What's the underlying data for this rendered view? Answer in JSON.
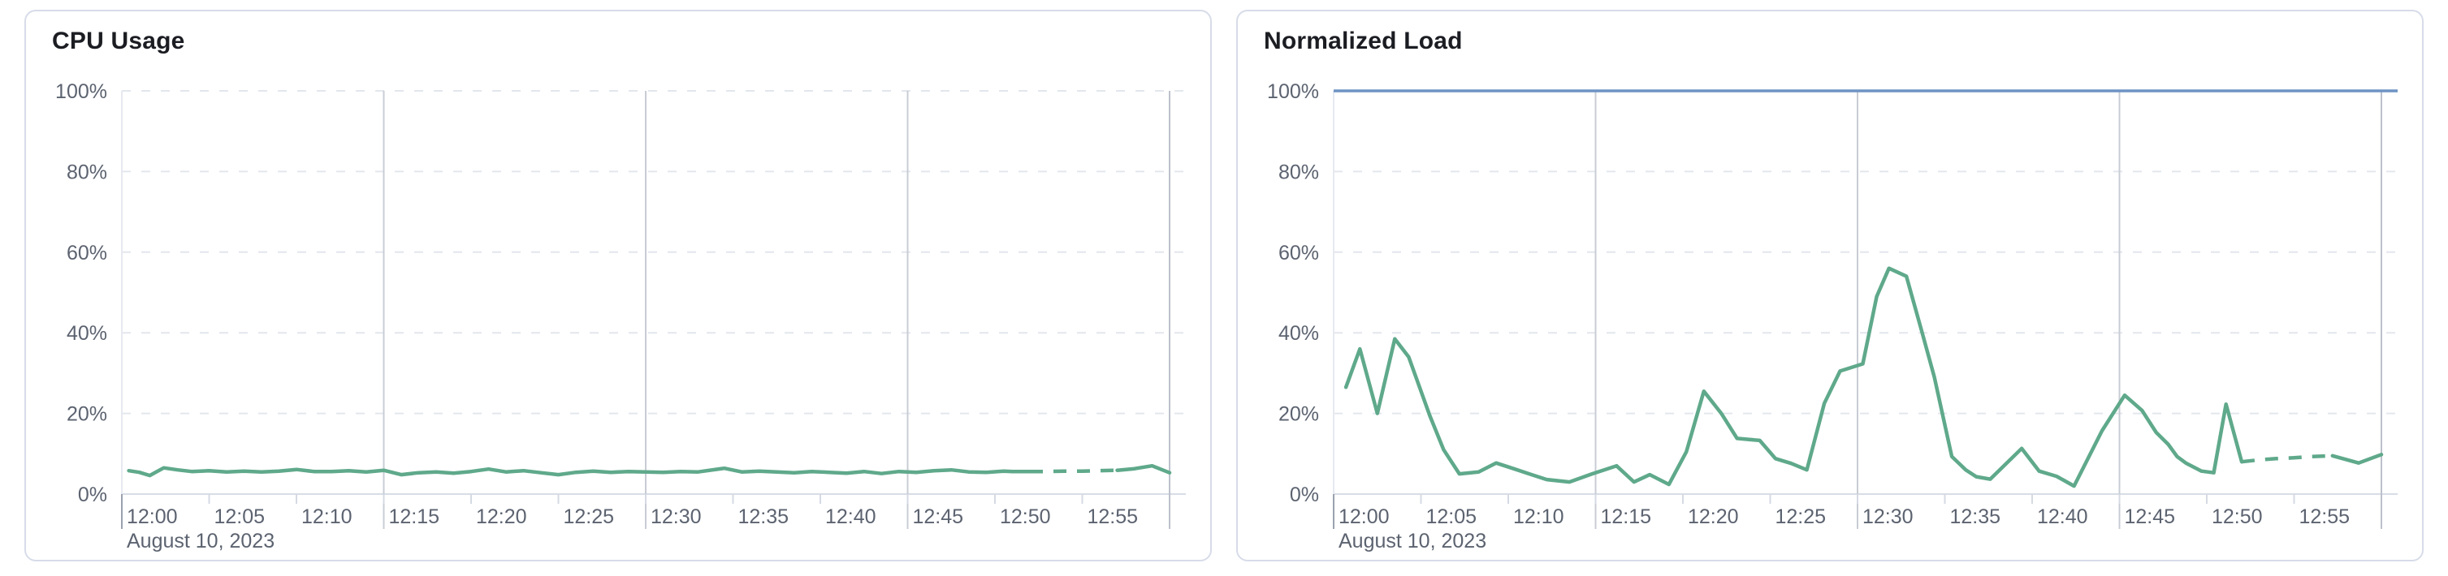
{
  "chart_data": [
    {
      "type": "line",
      "title": "CPU Usage",
      "date_label": "August 10, 2023",
      "x_tick_labels": [
        "12:00",
        "12:05",
        "12:10",
        "12:15",
        "12:20",
        "12:25",
        "12:30",
        "12:35",
        "12:40",
        "12:45",
        "12:50",
        "12:55"
      ],
      "x_tick_minutes": [
        0,
        5,
        10,
        15,
        20,
        25,
        30,
        35,
        40,
        45,
        50,
        55
      ],
      "x_major_gridline_minutes": [
        15,
        30,
        45
      ],
      "x_range_minutes": [
        0,
        60
      ],
      "ylim": [
        0,
        100
      ],
      "y_tick_values": [
        100,
        80,
        60,
        40,
        20,
        0
      ],
      "y_tick_labels": [
        "100%",
        "80%",
        "60%",
        "40%",
        "20%",
        "0%"
      ],
      "grid": {
        "horizontal": "dashed",
        "vertical": "solid-every-15min",
        "legend": "none"
      },
      "threshold": null,
      "series": [
        {
          "name": "cpu_usage",
          "color": "#5fa98b",
          "unit": "%",
          "dash_between_minutes": [
            52,
            57
          ],
          "dash_note": "segment rendered dashed (sparse/estimated data)",
          "points": [
            [
              0.4,
              5.8
            ],
            [
              1,
              5.4
            ],
            [
              1.6,
              4.6
            ],
            [
              2.4,
              6.5
            ],
            [
              3.2,
              6.0
            ],
            [
              4,
              5.6
            ],
            [
              5,
              5.8
            ],
            [
              6,
              5.5
            ],
            [
              7,
              5.7
            ],
            [
              8,
              5.5
            ],
            [
              9,
              5.7
            ],
            [
              10,
              6.1
            ],
            [
              11,
              5.6
            ],
            [
              12,
              5.6
            ],
            [
              13,
              5.8
            ],
            [
              14,
              5.5
            ],
            [
              15,
              5.9
            ],
            [
              16,
              4.8
            ],
            [
              17,
              5.3
            ],
            [
              18,
              5.5
            ],
            [
              19,
              5.2
            ],
            [
              20,
              5.6
            ],
            [
              21,
              6.2
            ],
            [
              22,
              5.5
            ],
            [
              23,
              5.8
            ],
            [
              24,
              5.3
            ],
            [
              25,
              4.8
            ],
            [
              26,
              5.4
            ],
            [
              27,
              5.7
            ],
            [
              28,
              5.4
            ],
            [
              29,
              5.6
            ],
            [
              30,
              5.5
            ],
            [
              31,
              5.4
            ],
            [
              32,
              5.6
            ],
            [
              33,
              5.5
            ],
            [
              34.5,
              6.4
            ],
            [
              35.5,
              5.5
            ],
            [
              36.5,
              5.7
            ],
            [
              37.5,
              5.5
            ],
            [
              38.5,
              5.3
            ],
            [
              39.5,
              5.6
            ],
            [
              40.5,
              5.4
            ],
            [
              41.5,
              5.2
            ],
            [
              42.5,
              5.6
            ],
            [
              43.5,
              5.1
            ],
            [
              44.5,
              5.6
            ],
            [
              45.5,
              5.4
            ],
            [
              46.5,
              5.8
            ],
            [
              47.5,
              6.0
            ],
            [
              48.5,
              5.5
            ],
            [
              49.5,
              5.4
            ],
            [
              50.5,
              5.7
            ],
            [
              51,
              5.6
            ],
            [
              52,
              5.6
            ],
            [
              53,
              5.6
            ],
            [
              54,
              5.7
            ],
            [
              55,
              5.7
            ],
            [
              56,
              5.8
            ],
            [
              57,
              5.9
            ],
            [
              58,
              6.3
            ],
            [
              59,
              7.0
            ],
            [
              60,
              5.3
            ]
          ]
        }
      ]
    },
    {
      "type": "line",
      "title": "Normalized Load",
      "date_label": "August 10, 2023",
      "x_tick_labels": [
        "12:00",
        "12:05",
        "12:10",
        "12:15",
        "12:20",
        "12:25",
        "12:30",
        "12:35",
        "12:40",
        "12:45",
        "12:50",
        "12:55"
      ],
      "x_tick_minutes": [
        0,
        5,
        10,
        15,
        20,
        25,
        30,
        35,
        40,
        45,
        50,
        55
      ],
      "x_major_gridline_minutes": [
        15,
        30,
        45
      ],
      "x_range_minutes": [
        0,
        60
      ],
      "ylim": [
        0,
        100
      ],
      "y_tick_values": [
        100,
        80,
        60,
        40,
        20,
        0
      ],
      "y_tick_labels": [
        "100%",
        "80%",
        "60%",
        "40%",
        "20%",
        "0%"
      ],
      "grid": {
        "horizontal": "dashed",
        "vertical": "solid-every-15min",
        "legend": "none"
      },
      "threshold": {
        "name": "load_limit_line",
        "value": 100,
        "color": "#6e94c4"
      },
      "series": [
        {
          "name": "normalized_load",
          "color": "#5fa98b",
          "unit": "%",
          "dash_between_minutes": [
            52,
            57.2
          ],
          "dash_note": "segment rendered dashed (sparse/estimated data)",
          "points": [
            [
              0.7,
              26.5
            ],
            [
              1.5,
              36
            ],
            [
              2.5,
              20
            ],
            [
              3.5,
              38.5
            ],
            [
              4.3,
              34
            ],
            [
              5.5,
              19.5
            ],
            [
              6.3,
              11
            ],
            [
              7.2,
              5
            ],
            [
              8.3,
              5.5
            ],
            [
              9.3,
              7.7
            ],
            [
              10.3,
              6.3
            ],
            [
              11.2,
              5
            ],
            [
              12.2,
              3.6
            ],
            [
              13.5,
              3
            ],
            [
              14.8,
              5
            ],
            [
              16.2,
              7
            ],
            [
              17.2,
              3
            ],
            [
              18.1,
              4.8
            ],
            [
              19.2,
              2.4
            ],
            [
              20.2,
              10.5
            ],
            [
              21.2,
              25.5
            ],
            [
              22.2,
              20
            ],
            [
              23.1,
              13.8
            ],
            [
              24.4,
              13.3
            ],
            [
              25.3,
              8.8
            ],
            [
              26.2,
              7.6
            ],
            [
              27.1,
              6
            ],
            [
              28.1,
              22.5
            ],
            [
              29,
              30.5
            ],
            [
              30.3,
              32.3
            ],
            [
              31.1,
              49
            ],
            [
              31.8,
              56
            ],
            [
              32.8,
              54
            ],
            [
              33.7,
              40
            ],
            [
              34.4,
              29
            ],
            [
              35.4,
              9.3
            ],
            [
              36.2,
              6
            ],
            [
              36.8,
              4.3
            ],
            [
              37.6,
              3.7
            ],
            [
              39.4,
              11.3
            ],
            [
              40.4,
              5.7
            ],
            [
              41.4,
              4.4
            ],
            [
              42.4,
              2
            ],
            [
              44,
              15.7
            ],
            [
              45.3,
              24.5
            ],
            [
              46.3,
              20.7
            ],
            [
              47.1,
              15.3
            ],
            [
              47.8,
              12.3
            ],
            [
              48.3,
              9.3
            ],
            [
              48.8,
              7.7
            ],
            [
              49.7,
              5.7
            ],
            [
              50.4,
              5.3
            ],
            [
              51.1,
              22.3
            ],
            [
              52,
              8
            ],
            [
              53,
              8.5
            ],
            [
              54,
              8.8
            ],
            [
              55,
              9
            ],
            [
              56,
              9.3
            ],
            [
              57.2,
              9.5
            ],
            [
              58.7,
              7.7
            ],
            [
              60,
              9.8
            ]
          ]
        }
      ]
    }
  ]
}
